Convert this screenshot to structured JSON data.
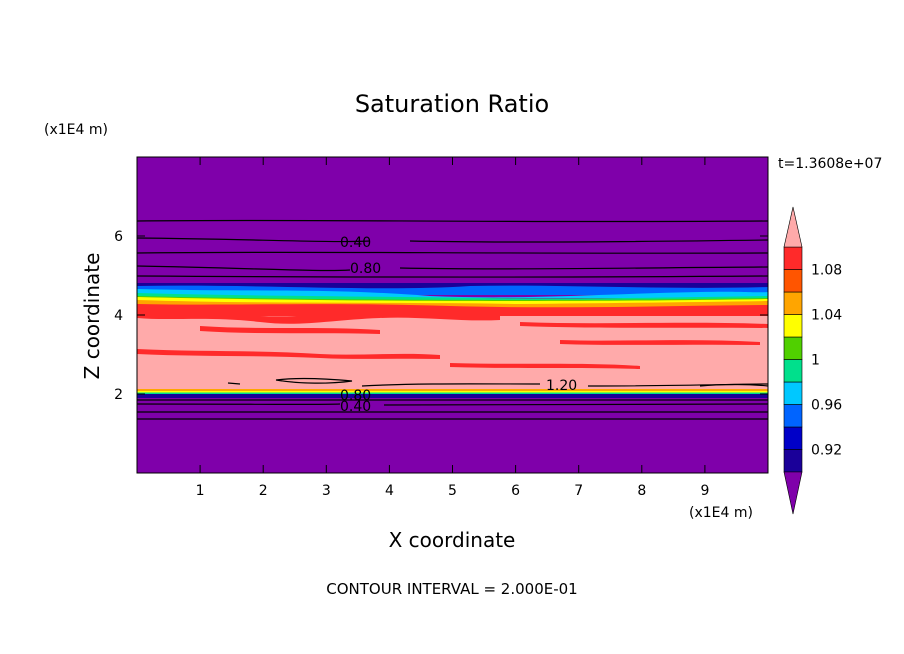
{
  "chart_data": {
    "type": "heatmap",
    "title": "Saturation Ratio",
    "xlabel": "X coordinate",
    "ylabel": "Z coordinate",
    "x_unit": "(x1E4 m)",
    "y_unit": "(x1E4 m)",
    "time_label": "t=1.3608e+07",
    "footer": "CONTOUR INTERVAL = 2.000E-01",
    "xlim": [
      0,
      10
    ],
    "ylim": [
      0,
      8
    ],
    "x_ticks": [
      "1",
      "2",
      "3",
      "4",
      "5",
      "6",
      "7",
      "8",
      "9"
    ],
    "y_ticks": [
      "2",
      "4",
      "6"
    ],
    "colorbar": {
      "levels": [
        0.9,
        0.92,
        0.94,
        0.96,
        0.98,
        1.0,
        1.02,
        1.04,
        1.06,
        1.08,
        1.1
      ],
      "tick_labels": [
        "0.92",
        "0.96",
        "1",
        "1.04",
        "1.08"
      ],
      "colors": [
        "#7f00aa",
        "#1a0099",
        "#0000c8",
        "#0064ff",
        "#00c8ff",
        "#00e08c",
        "#50d000",
        "#ffff00",
        "#ffa500",
        "#ff5500",
        "#ff2a2a",
        "#ffaaaa"
      ]
    },
    "contour_labels": [
      "0.40",
      "0.80",
      "1.20",
      "0.80",
      "0.40"
    ]
  }
}
